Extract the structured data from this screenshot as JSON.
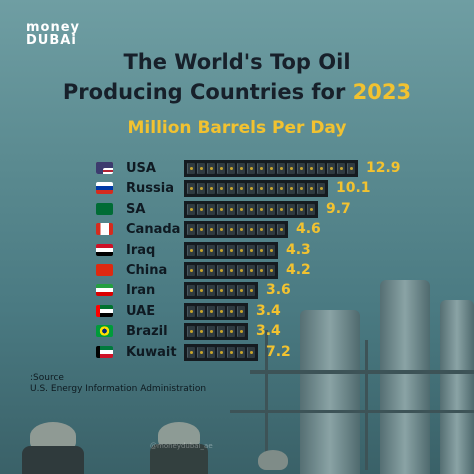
{
  "brand": {
    "line1": "money",
    "line2": "DUBAi"
  },
  "title": {
    "line1": "The World's Top Oil",
    "line2": "Producing Countries for",
    "year": "2023"
  },
  "subtitle": "Million Barrels Per Day",
  "source": {
    "label": ":Source",
    "text": "U.S. Energy Information Administration"
  },
  "watermark": "@moneydubai_ae",
  "colors": {
    "accent": "#f2c230",
    "text": "#17202a",
    "bar": "#151b20"
  },
  "chart_data": {
    "type": "bar",
    "orientation": "horizontal",
    "title": "The World's Top Oil Producing Countries for 2023",
    "subtitle": "Million Barrels Per Day",
    "categories": [
      "USA",
      "Russia",
      "SA",
      "Canada",
      "Iraq",
      "China",
      "Iran",
      "UAE",
      "Brazil",
      "Kuwait"
    ],
    "value_labels": [
      "12.9",
      "10.1",
      "9.7",
      "4.6",
      "4.3",
      "4.2",
      "3.6",
      "3.4",
      "3.4",
      "7.2"
    ],
    "barrel_counts": [
      17,
      14,
      13,
      10,
      9,
      9,
      7,
      6,
      6,
      7
    ],
    "flags": [
      "us-flag-icon",
      "russia-flag-icon",
      "saudi-flag-icon",
      "canada-flag-icon",
      "iraq-flag-icon",
      "china-flag-icon",
      "iran-flag-icon",
      "uae-flag-icon",
      "brazil-flag-icon",
      "kuwait-flag-icon"
    ]
  }
}
